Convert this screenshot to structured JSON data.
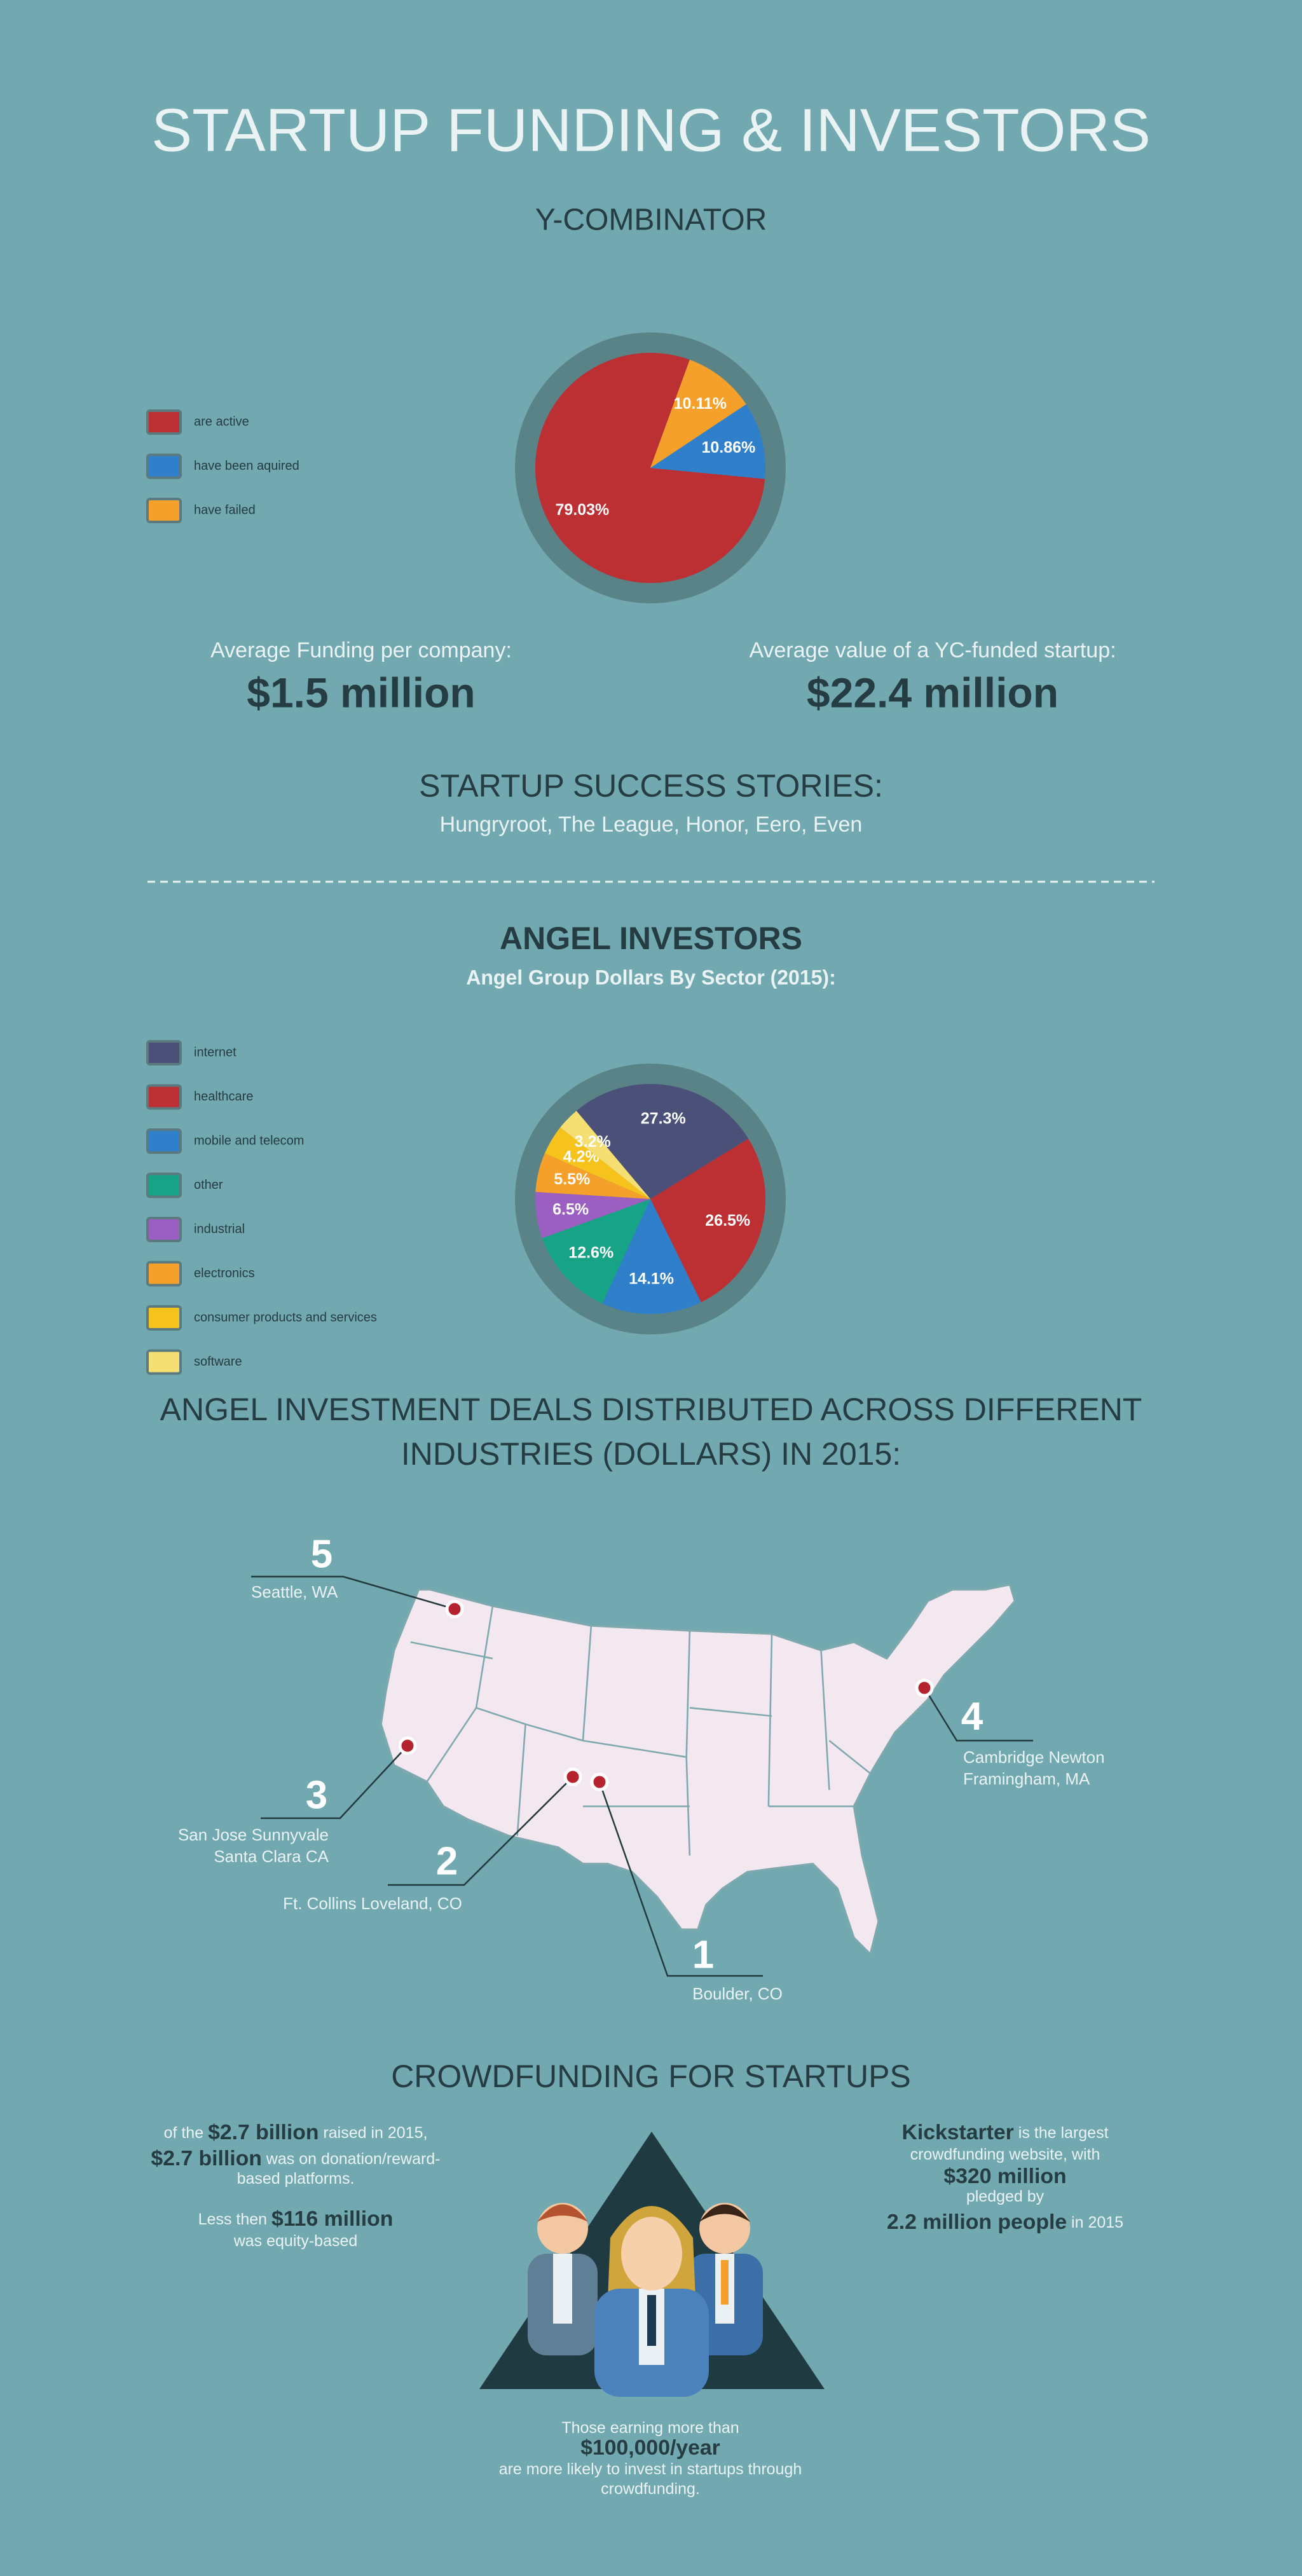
{
  "title": "STARTUP FUNDING & INVESTORS",
  "ycombinator": {
    "heading": "Y-COMBINATOR",
    "stats": [
      {
        "label": "Average Funding per company:",
        "value": "$1.5 million"
      },
      {
        "label": "Average value of a YC-funded startup:",
        "value": "$22.4 million"
      }
    ],
    "success": {
      "heading": "STARTUP SUCCESS STORIES:",
      "list": "Hungryroot, The League, Honor, Eero, Even"
    }
  },
  "angel": {
    "heading": "ANGEL INVESTORS"
  },
  "chart_data": [
    {
      "type": "pie",
      "categories": [
        "are active",
        "have been aquired",
        "have failed"
      ],
      "values": [
        79.03,
        10.86,
        10.11
      ],
      "value_labels": [
        "79.03%",
        "10.86%",
        "10.11%"
      ],
      "colors": [
        "#bc2f33",
        "#2f7fcb",
        "#f5a02a"
      ]
    },
    {
      "type": "pie",
      "title": "Angel Group Dollars By Sector (2015):",
      "categories": [
        "internet",
        "healthcare",
        "mobile and telecom",
        "other",
        "industrial",
        "electronics",
        "consumer products and services",
        "software"
      ],
      "values": [
        27.3,
        26.5,
        14.1,
        12.6,
        6.5,
        5.5,
        4.2,
        3.2
      ],
      "value_labels": [
        "27.3%",
        "26.5%",
        "14.1%",
        "12.6%",
        "6.5%",
        "5.5%",
        "4.2%",
        "3.2%"
      ],
      "colors": [
        "#4a5078",
        "#bc2f33",
        "#2f7fcb",
        "#16a386",
        "#9a5fc0",
        "#f5a02a",
        "#f5c31c",
        "#f6df72"
      ]
    }
  ],
  "map": {
    "heading_lines": [
      "ANGEL INVESTMENT DEALS DISTRIBUTED ACROSS DIFFERENT",
      "INDUSTRIES (DOLLARS) IN 2015:"
    ],
    "locations": [
      {
        "rank": 5,
        "lines": [
          "Seattle, WA"
        ]
      },
      {
        "rank": 3,
        "lines": [
          "San Jose Sunnyvale",
          "Santa Clara CA"
        ]
      },
      {
        "rank": 2,
        "lines": [
          "Ft. Collins Loveland, CO"
        ]
      },
      {
        "rank": 1,
        "lines": [
          "Boulder, CO"
        ]
      },
      {
        "rank": 4,
        "lines": [
          "Cambridge Newton",
          "Framingham, MA"
        ]
      }
    ]
  },
  "crowdfunding": {
    "heading": "CROWDFUNDING FOR STARTUPS",
    "left": [
      [
        {
          "text": "of the ",
          "bold": false
        },
        {
          "text": "$2.7 billion",
          "bold": true
        },
        {
          "text": " raised in 2015,",
          "bold": false
        }
      ],
      [
        {
          "text": "$2.7 billion",
          "bold": true
        },
        {
          "text": " was on donation/reward-",
          "bold": false
        }
      ],
      [
        {
          "text": "based platforms.",
          "bold": false
        }
      ],
      [
        {
          "text": "Less then ",
          "bold": false
        },
        {
          "text": "$116 million",
          "bold": true
        }
      ],
      [
        {
          "text": "was equity-based",
          "bold": false
        }
      ]
    ],
    "right": [
      [
        {
          "text": "Kickstarter",
          "bold": true
        },
        {
          "text": " is the largest",
          "bold": false
        }
      ],
      [
        {
          "text": "crowdfunding website, with",
          "bold": false
        }
      ],
      [
        {
          "text": "$320 million",
          "bold": true
        }
      ],
      [
        {
          "text": "pledged by",
          "bold": false
        }
      ],
      [
        {
          "text": "2.2 million people",
          "bold": true
        },
        {
          "text": " in 2015",
          "bold": false
        }
      ]
    ],
    "bottom": [
      [
        {
          "text": "Those earning more than",
          "bold": false
        }
      ],
      [
        {
          "text": "$100,000/year",
          "bold": true
        }
      ],
      [
        {
          "text": "are more likely to invest in startups through",
          "bold": false
        }
      ],
      [
        {
          "text": "crowdfunding.",
          "bold": false
        }
      ]
    ]
  }
}
